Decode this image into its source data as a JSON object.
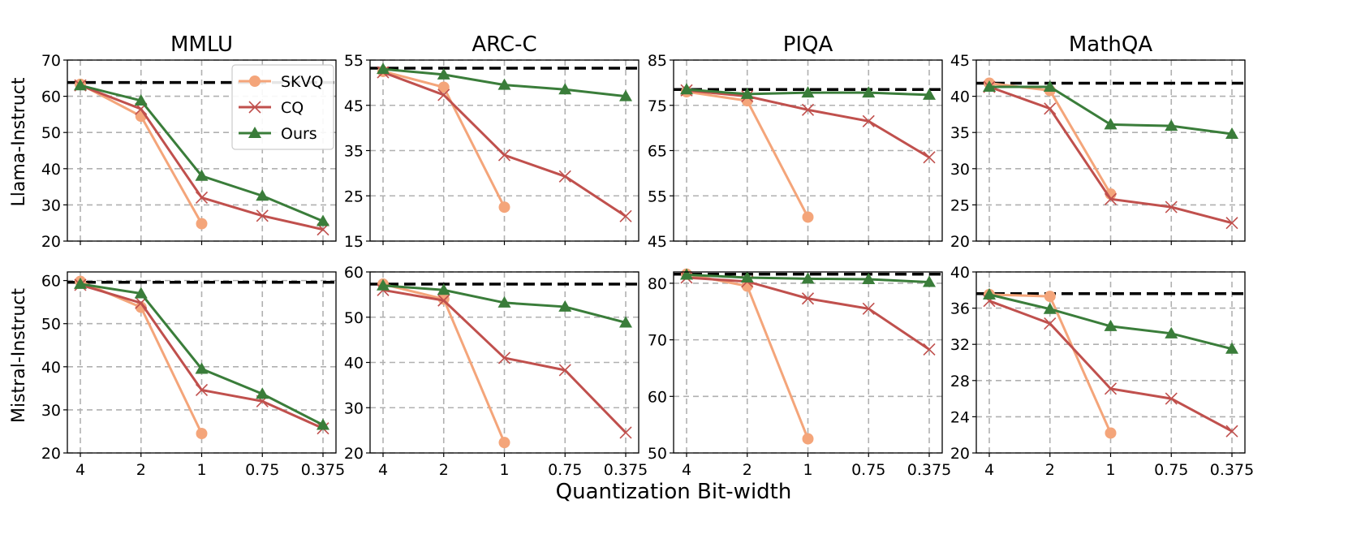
{
  "figure": {
    "xlabel": "Quantization Bit-width",
    "row_labels": [
      "Llama-Instruct",
      "Mistral-Instruct"
    ],
    "column_titles": [
      "MMLU",
      "ARC-C",
      "PIQA",
      "MathQA"
    ]
  },
  "legend": {
    "placement": "top-right of first panel",
    "entries": [
      {
        "name": "SKVQ",
        "color": "#f4a57a",
        "marker": "circle"
      },
      {
        "name": "CQ",
        "color": "#c0504d",
        "marker": "x"
      },
      {
        "name": "Ours",
        "color": "#3a7d3a",
        "marker": "triangle"
      }
    ]
  },
  "chart_data": [
    {
      "type": "line",
      "title": "MMLU",
      "row_label": "Llama-Instruct",
      "xlabel": "Quantization Bit-width",
      "ylabel": "Llama-Instruct",
      "categories": [
        "4",
        "2",
        "1",
        "0.75",
        "0.375"
      ],
      "ylim": [
        20,
        70
      ],
      "yticks": [
        20,
        30,
        40,
        50,
        60,
        70
      ],
      "grid": true,
      "baseline": 63.8,
      "series": [
        {
          "name": "SKVQ",
          "values": [
            63.3,
            54.5,
            24.8,
            null,
            null
          ]
        },
        {
          "name": "CQ",
          "values": [
            63.0,
            56.5,
            32.0,
            27.0,
            23.2
          ]
        },
        {
          "name": "Ours",
          "values": [
            63.0,
            58.8,
            38.0,
            32.5,
            25.5
          ]
        }
      ]
    },
    {
      "type": "line",
      "title": "ARC-C",
      "row_label": "Llama-Instruct",
      "xlabel": "Quantization Bit-width",
      "ylabel": "",
      "categories": [
        "4",
        "2",
        "1",
        "0.75",
        "0.375"
      ],
      "ylim": [
        15,
        55
      ],
      "yticks": [
        15,
        25,
        35,
        45,
        55
      ],
      "grid": true,
      "baseline": 53.2,
      "series": [
        {
          "name": "SKVQ",
          "values": [
            52.5,
            49.0,
            22.5,
            null,
            null
          ]
        },
        {
          "name": "CQ",
          "values": [
            52.3,
            47.3,
            34.0,
            29.3,
            20.5
          ]
        },
        {
          "name": "Ours",
          "values": [
            53.0,
            51.8,
            49.5,
            48.5,
            47.0
          ]
        }
      ]
    },
    {
      "type": "line",
      "title": "PIQA",
      "row_label": "Llama-Instruct",
      "xlabel": "Quantization Bit-width",
      "ylabel": "",
      "categories": [
        "4",
        "2",
        "1",
        "0.75",
        "0.375"
      ],
      "ylim": [
        45,
        85
      ],
      "yticks": [
        45,
        55,
        65,
        75,
        85
      ],
      "grid": true,
      "baseline": 78.5,
      "series": [
        {
          "name": "SKVQ",
          "values": [
            78.0,
            76.0,
            50.3,
            null,
            null
          ]
        },
        {
          "name": "CQ",
          "values": [
            78.3,
            77.0,
            74.0,
            71.5,
            63.5
          ]
        },
        {
          "name": "Ours",
          "values": [
            78.5,
            77.5,
            77.8,
            77.8,
            77.3
          ]
        }
      ]
    },
    {
      "type": "line",
      "title": "MathQA",
      "row_label": "Llama-Instruct",
      "xlabel": "Quantization Bit-width",
      "ylabel": "",
      "categories": [
        "4",
        "2",
        "1",
        "0.75",
        "0.375"
      ],
      "ylim": [
        20,
        45
      ],
      "yticks": [
        20,
        25,
        30,
        35,
        40,
        45
      ],
      "grid": true,
      "baseline": 41.8,
      "series": [
        {
          "name": "SKVQ",
          "values": [
            41.8,
            40.8,
            26.5,
            null,
            null
          ]
        },
        {
          "name": "CQ",
          "values": [
            41.3,
            38.3,
            25.8,
            24.7,
            22.5
          ]
        },
        {
          "name": "Ours",
          "values": [
            41.3,
            41.3,
            36.1,
            35.9,
            34.8
          ]
        }
      ]
    },
    {
      "type": "line",
      "title": "",
      "row_label": "Mistral-Instruct",
      "xlabel": "Quantization Bit-width",
      "ylabel": "Mistral-Instruct",
      "categories": [
        "4",
        "2",
        "1",
        "0.75",
        "0.375"
      ],
      "ylim": [
        20,
        62
      ],
      "yticks": [
        20,
        30,
        40,
        50,
        60
      ],
      "grid": true,
      "baseline": 59.6,
      "series": [
        {
          "name": "SKVQ",
          "values": [
            59.8,
            53.8,
            24.5,
            null,
            null
          ]
        },
        {
          "name": "CQ",
          "values": [
            59.0,
            54.8,
            34.6,
            32.0,
            25.7
          ]
        },
        {
          "name": "Ours",
          "values": [
            59.2,
            57.0,
            39.5,
            33.7,
            26.5
          ]
        }
      ]
    },
    {
      "type": "line",
      "title": "",
      "row_label": "Mistral-Instruct",
      "xlabel": "Quantization Bit-width",
      "ylabel": "",
      "categories": [
        "4",
        "2",
        "1",
        "0.75",
        "0.375"
      ],
      "ylim": [
        20,
        60
      ],
      "yticks": [
        20,
        30,
        40,
        50,
        60
      ],
      "grid": true,
      "baseline": 57.3,
      "series": [
        {
          "name": "SKVQ",
          "values": [
            57.3,
            54.0,
            22.3,
            null,
            null
          ]
        },
        {
          "name": "CQ",
          "values": [
            56.0,
            53.7,
            41.0,
            38.3,
            24.5
          ]
        },
        {
          "name": "Ours",
          "values": [
            57.0,
            56.0,
            53.2,
            52.3,
            48.8
          ]
        }
      ]
    },
    {
      "type": "line",
      "title": "",
      "row_label": "Mistral-Instruct",
      "xlabel": "Quantization Bit-width",
      "ylabel": "",
      "categories": [
        "4",
        "2",
        "1",
        "0.75",
        "0.375"
      ],
      "ylim": [
        50,
        82
      ],
      "yticks": [
        50,
        60,
        70,
        80
      ],
      "grid": true,
      "baseline": 81.6,
      "series": [
        {
          "name": "SKVQ",
          "values": [
            81.6,
            79.5,
            52.5,
            null,
            null
          ]
        },
        {
          "name": "CQ",
          "values": [
            81.0,
            80.3,
            77.3,
            75.5,
            68.3
          ]
        },
        {
          "name": "Ours",
          "values": [
            81.5,
            81.0,
            80.8,
            80.7,
            80.2
          ]
        }
      ]
    },
    {
      "type": "line",
      "title": "",
      "row_label": "Mistral-Instruct",
      "xlabel": "Quantization Bit-width",
      "ylabel": "",
      "categories": [
        "4",
        "2",
        "1",
        "0.75",
        "0.375"
      ],
      "ylim": [
        20,
        40
      ],
      "yticks": [
        20,
        24,
        28,
        32,
        36,
        40
      ],
      "grid": true,
      "baseline": 37.6,
      "series": [
        {
          "name": "SKVQ",
          "values": [
            37.5,
            37.3,
            22.2,
            null,
            null
          ]
        },
        {
          "name": "CQ",
          "values": [
            36.8,
            34.3,
            27.1,
            26.0,
            22.4
          ]
        },
        {
          "name": "Ours",
          "values": [
            37.5,
            35.9,
            34.0,
            33.2,
            31.5
          ]
        }
      ]
    }
  ]
}
